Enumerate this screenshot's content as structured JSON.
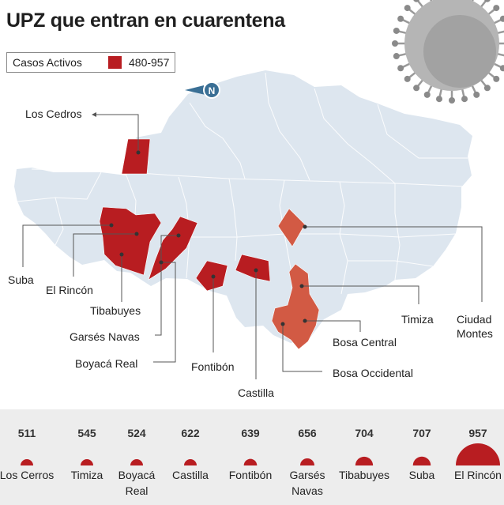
{
  "title": "UPZ que entran en cuarentena",
  "legend": {
    "label": "Casos Activos",
    "range": "480-957",
    "color": "#b81d21"
  },
  "colors": {
    "dark_red": "#b81d21",
    "light_red": "#d25a44",
    "base_map": "#dde6ef"
  },
  "compass": {
    "letter": "N",
    "icon": "north-arrow-icon"
  },
  "map_labels": {
    "los_cedros": "Los Cedros",
    "suba": "Suba",
    "el_rincon": "El Rincón",
    "tibabuyes": "Tibabuyes",
    "garses_navas": "Garsés Navas",
    "boyaca_real": "Boyacá Real",
    "fontibon": "Fontibón",
    "castilla": "Castilla",
    "bosa_central": "Bosa Central",
    "bosa_occidental": "Bosa Occidental",
    "timiza": "Timiza",
    "ciudad_montes_1": "Ciudad",
    "ciudad_montes_2": "Montes"
  },
  "chart_data": {
    "type": "bar",
    "categories": [
      [
        "Los Cerros"
      ],
      [
        "Timiza"
      ],
      [
        "Boyacá",
        "Real"
      ],
      [
        "Castilla"
      ],
      [
        "Fontibón"
      ],
      [
        "Garsés",
        "Navas"
      ],
      [
        "Tibabuyes"
      ],
      [
        "Suba"
      ],
      [
        "El Rincón"
      ]
    ],
    "values": [
      511,
      545,
      524,
      622,
      639,
      656,
      704,
      707,
      957
    ],
    "encoding": "semicircle area"
  }
}
